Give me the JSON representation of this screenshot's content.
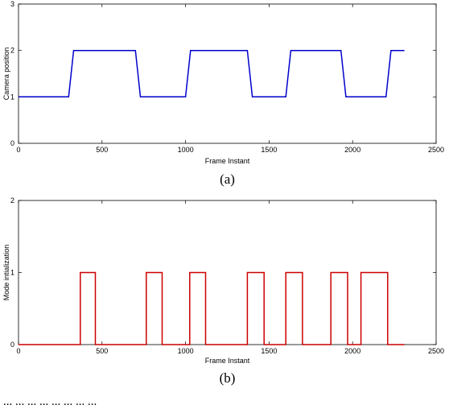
{
  "chart_data": [
    {
      "type": "line",
      "caption": "(a)",
      "xlabel": "Frame Instant",
      "ylabel": "Camera position",
      "xlim": [
        0,
        2500
      ],
      "ylim": [
        0,
        3
      ],
      "xticks": [
        "0",
        "500",
        "1000",
        "1500",
        "2000",
        "2500"
      ],
      "yticks": [
        "0",
        "1",
        "2",
        "3"
      ],
      "color": "#0000cc",
      "grid": false,
      "series": [
        {
          "x": [
            0,
            300,
            330,
            700,
            730,
            1000,
            1030,
            1370,
            1400,
            1600,
            1630,
            1930,
            1960,
            2200,
            2230,
            2310
          ],
          "y": [
            1,
            1,
            2,
            2,
            1,
            1,
            2,
            2,
            1,
            1,
            2,
            2,
            1,
            1,
            2,
            2
          ]
        }
      ]
    },
    {
      "type": "line",
      "caption": "(b)",
      "xlabel": "Frame Instant",
      "ylabel": "Mode intialization",
      "xlim": [
        0,
        2500
      ],
      "ylim": [
        0,
        2
      ],
      "xticks": [
        "0",
        "500",
        "1000",
        "1500",
        "2000",
        "2500"
      ],
      "yticks": [
        "0",
        "1",
        "2"
      ],
      "color": "#cc0000",
      "grid": false,
      "series": [
        {
          "x": [
            0,
            370,
            370,
            460,
            460,
            765,
            765,
            860,
            860,
            1025,
            1025,
            1120,
            1120,
            1370,
            1370,
            1470,
            1470,
            1600,
            1600,
            1700,
            1700,
            1870,
            1870,
            1970,
            1970,
            2050,
            2050,
            2210,
            2210,
            2310
          ],
          "y": [
            0,
            0,
            1,
            1,
            0,
            0,
            1,
            1,
            0,
            0,
            1,
            1,
            0,
            0,
            1,
            1,
            0,
            0,
            1,
            1,
            0,
            0,
            1,
            1,
            0,
            0,
            1,
            1,
            0,
            0
          ]
        }
      ]
    }
  ],
  "bottom_text": "... ... ... ... ... ... ... ..."
}
